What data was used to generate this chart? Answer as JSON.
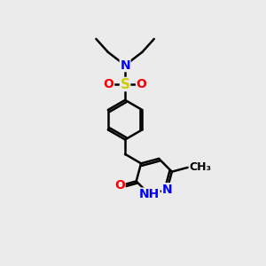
{
  "bg_color": "#ebebeb",
  "atom_colors": {
    "C": "#000000",
    "N": "#0000ff",
    "O": "#ff0000",
    "S": "#cccc00",
    "H": "#aaaaaa"
  },
  "bond_color": "#000000",
  "bond_width": 1.8,
  "font_size": 10,
  "ring_r": 0.7,
  "benz_r": 0.75
}
